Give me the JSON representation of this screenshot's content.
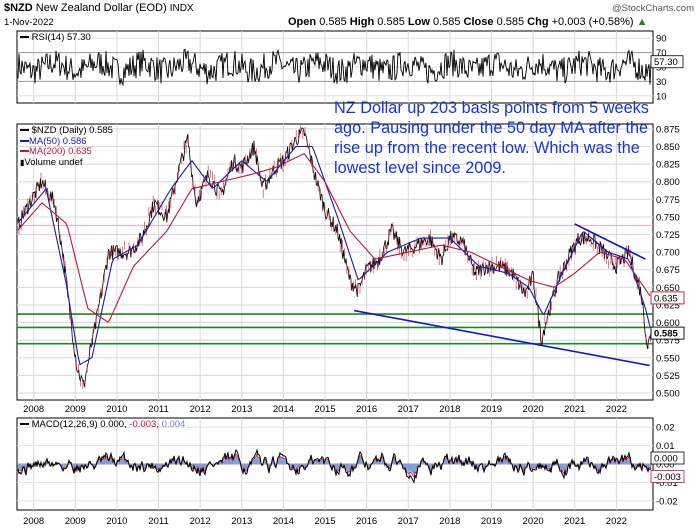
{
  "header": {
    "symbol": "$NZD",
    "name": "New Zealand Dollar (EOD)",
    "exchange": "INDX",
    "date": "1-Nov-2022",
    "open_label": "Open",
    "open": "0.585",
    "high_label": "High",
    "high": "0.585",
    "low_label": "Low",
    "low": "0.585",
    "close_label": "Close",
    "close": "0.585",
    "chg_label": "Chg",
    "chg": "+0.003 (+0.58%)",
    "watermark": "@StockCharts.com"
  },
  "rsi_panel": {
    "label": "RSI(14) 57.30",
    "tag": "57.30",
    "ticks": [
      "90",
      "70",
      "50",
      "30",
      "10"
    ]
  },
  "price_panel": {
    "legend": [
      {
        "text": "$NZD (Daily) 0.585",
        "color": "#000000"
      },
      {
        "text": "MA(50) 0.586",
        "color": "#1a1ab0"
      },
      {
        "text": "MA(200) 0.635",
        "color": "#c0143c"
      },
      {
        "text": "Volume undef",
        "color": "#000000"
      }
    ],
    "annotation": "NZ Dollar up 203 basis points from 5 weeks ago. Pausing under the 50 day MA after the rise up from the recent low. Which was the lowest level since 2009.",
    "price_tags": {
      "ma200": "0.635",
      "close": "0.585"
    },
    "colors": {
      "price": "#000000",
      "ma50": "#1a1ab0",
      "ma200": "#c0143c",
      "trendline": "#1414d2",
      "support": "#1a8a1a",
      "note": "#1436d6"
    }
  },
  "macd_panel": {
    "label_prefix": "MACD(12,26,9)",
    "macd": "0.000,",
    "signal": "-0.003,",
    "hist": "0.004",
    "tags": [
      "0.000",
      "-0.003"
    ],
    "ticks": [
      "0.02",
      "0.01",
      "0.00",
      "-0.01",
      "-0.02"
    ]
  },
  "x_axis_years": [
    "2008",
    "2009",
    "2010",
    "2011",
    "2012",
    "2013",
    "2014",
    "2015",
    "2016",
    "2017",
    "2018",
    "2019",
    "2020",
    "2021",
    "2022"
  ],
  "chart_data": {
    "type": "line",
    "title": "$NZD New Zealand Dollar (EOD) INDX",
    "x_range": [
      "2007-08",
      "2022-11"
    ],
    "ylim": [
      0.49,
      0.875
    ],
    "y_ticks": [
      0.5,
      0.525,
      0.55,
      0.575,
      0.6,
      0.625,
      0.65,
      0.675,
      0.7,
      0.725,
      0.75,
      0.775,
      0.8,
      0.825,
      0.85,
      0.875
    ],
    "support_lines": [
      0.612,
      0.593,
      0.57
    ],
    "trendlines": [
      {
        "from": [
          2015.7,
          0.617
        ],
        "to": [
          2022.8,
          0.539
        ]
      },
      {
        "from": [
          2021.0,
          0.74
        ],
        "to": [
          2022.7,
          0.69
        ]
      }
    ],
    "series": [
      {
        "name": "$NZD (Daily)",
        "x": [
          2007.6,
          2007.9,
          2008.2,
          2008.5,
          2008.7,
          2008.9,
          2009.05,
          2009.2,
          2009.5,
          2009.8,
          2010.0,
          2010.3,
          2010.6,
          2010.9,
          2011.2,
          2011.5,
          2011.7,
          2011.9,
          2012.2,
          2012.5,
          2012.8,
          2013.0,
          2013.3,
          2013.5,
          2013.8,
          2014.0,
          2014.3,
          2014.5,
          2014.8,
          2015.0,
          2015.3,
          2015.6,
          2015.8,
          2016.0,
          2016.3,
          2016.6,
          2016.9,
          2017.2,
          2017.5,
          2017.8,
          2018.0,
          2018.3,
          2018.6,
          2018.9,
          2019.2,
          2019.5,
          2019.8,
          2020.0,
          2020.2,
          2020.3,
          2020.6,
          2020.9,
          2021.1,
          2021.4,
          2021.7,
          2022.0,
          2022.3,
          2022.6,
          2022.75,
          2022.84
        ],
        "y": [
          0.735,
          0.77,
          0.8,
          0.77,
          0.7,
          0.6,
          0.535,
          0.51,
          0.6,
          0.7,
          0.7,
          0.7,
          0.72,
          0.77,
          0.75,
          0.82,
          0.86,
          0.77,
          0.81,
          0.78,
          0.83,
          0.82,
          0.85,
          0.79,
          0.82,
          0.83,
          0.86,
          0.87,
          0.8,
          0.76,
          0.73,
          0.66,
          0.645,
          0.675,
          0.69,
          0.73,
          0.7,
          0.71,
          0.72,
          0.69,
          0.72,
          0.715,
          0.67,
          0.68,
          0.68,
          0.67,
          0.64,
          0.665,
          0.575,
          0.6,
          0.66,
          0.7,
          0.72,
          0.72,
          0.7,
          0.68,
          0.7,
          0.64,
          0.565,
          0.585
        ]
      },
      {
        "name": "MA(50)",
        "x": [
          2007.6,
          2008.3,
          2008.8,
          2009.1,
          2009.4,
          2009.9,
          2010.5,
          2011.3,
          2011.8,
          2012.3,
          2013.0,
          2013.6,
          2014.3,
          2014.7,
          2015.3,
          2015.8,
          2016.5,
          2017.3,
          2018.0,
          2018.7,
          2019.4,
          2019.9,
          2020.25,
          2020.7,
          2021.2,
          2021.8,
          2022.3,
          2022.7,
          2022.84
        ],
        "y": [
          0.74,
          0.79,
          0.65,
          0.54,
          0.55,
          0.69,
          0.71,
          0.79,
          0.83,
          0.79,
          0.83,
          0.8,
          0.85,
          0.85,
          0.75,
          0.66,
          0.7,
          0.72,
          0.72,
          0.68,
          0.67,
          0.65,
          0.61,
          0.67,
          0.73,
          0.7,
          0.69,
          0.62,
          0.586
        ]
      },
      {
        "name": "MA(200)",
        "x": [
          2007.6,
          2008.2,
          2008.8,
          2009.3,
          2009.8,
          2010.4,
          2011.2,
          2011.8,
          2012.5,
          2013.2,
          2013.8,
          2014.5,
          2015.0,
          2015.6,
          2016.2,
          2017.0,
          2017.8,
          2018.5,
          2019.2,
          2019.9,
          2020.5,
          2021.0,
          2021.6,
          2022.2,
          2022.84
        ],
        "y": [
          0.73,
          0.77,
          0.74,
          0.62,
          0.6,
          0.68,
          0.73,
          0.79,
          0.8,
          0.81,
          0.82,
          0.84,
          0.8,
          0.73,
          0.69,
          0.7,
          0.71,
          0.7,
          0.68,
          0.66,
          0.65,
          0.67,
          0.7,
          0.69,
          0.635
        ]
      }
    ]
  }
}
